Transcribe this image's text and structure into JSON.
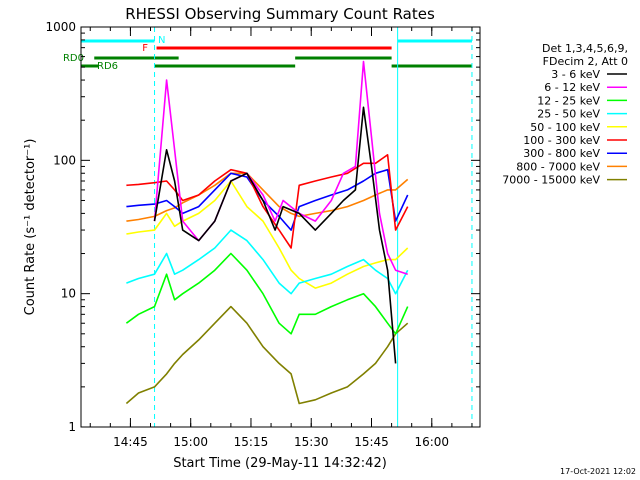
{
  "chart_data": {
    "type": "line",
    "title": "RHESSI Observing Summary Count Rates",
    "xlabel": "Start Time (29-May-11 14:32:42)",
    "ylabel": "Count Rate (s⁻¹ detector⁻¹)",
    "y_scale": "log",
    "ylim": [
      1,
      1000
    ],
    "xlim": [
      "14:32:42",
      "16:12:00"
    ],
    "grid": false,
    "x_ticks": [
      "14:45",
      "15:00",
      "15:15",
      "15:30",
      "15:45",
      "16:00"
    ],
    "y_ticks": [
      "1",
      "10",
      "100",
      "1000"
    ],
    "timestamp": "17-Oct-2021 12:02",
    "legend": {
      "position": "right",
      "header": [
        "Det 1,3,4,5,6,9,",
        "FDecim 2, Att 0"
      ]
    },
    "flags": [
      {
        "label": "N",
        "color": "#00ffff",
        "segments": [
          [
            "14:32:42",
            "14:51:00"
          ],
          [
            "15:51:30",
            "16:10:00"
          ]
        ]
      },
      {
        "label": "F",
        "color": "#ff0000",
        "segments": [
          [
            "14:51:30",
            "15:50:00"
          ]
        ]
      },
      {
        "label": "RD0",
        "color": "#008000",
        "segments": [
          [
            "14:36:00",
            "14:57:00"
          ],
          [
            "15:26:00",
            "15:50:00"
          ]
        ]
      },
      {
        "label": "RD6",
        "color": "#008000",
        "segments": [
          [
            "14:32:42",
            "14:37:00"
          ],
          [
            "14:51:00",
            "15:26:00"
          ],
          [
            "15:50:00",
            "16:10:00"
          ]
        ]
      }
    ],
    "vlines": [
      {
        "time": "14:51:00",
        "color": "#00ffff",
        "style": "dashed"
      },
      {
        "time": "15:51:30",
        "color": "#00ffff",
        "style": "solid"
      },
      {
        "time": "16:10:00",
        "color": "#00ffff",
        "style": "dashed"
      }
    ],
    "series": [
      {
        "name": "3 - 6 keV",
        "color": "#000000",
        "points": [
          [
            "14:51:00",
            35
          ],
          [
            "14:54:00",
            120
          ],
          [
            "14:56:00",
            70
          ],
          [
            "14:58:00",
            30
          ],
          [
            "15:02:00",
            25
          ],
          [
            "15:06:00",
            35
          ],
          [
            "15:10:00",
            70
          ],
          [
            "15:14:00",
            80
          ],
          [
            "15:18:00",
            50
          ],
          [
            "15:21:00",
            30
          ],
          [
            "15:23:00",
            45
          ],
          [
            "15:27:00",
            40
          ],
          [
            "15:31:00",
            30
          ],
          [
            "15:35:00",
            40
          ],
          [
            "15:38:00",
            50
          ],
          [
            "15:41:00",
            60
          ],
          [
            "15:43:00",
            250
          ],
          [
            "15:45:00",
            90
          ],
          [
            "15:47:00",
            30
          ],
          [
            "15:49:00",
            15
          ],
          [
            "15:51:00",
            3
          ]
        ]
      },
      {
        "name": "6 - 12 keV",
        "color": "#ff00ff",
        "points": [
          [
            "14:51:00",
            35
          ],
          [
            "14:54:00",
            400
          ],
          [
            "14:56:00",
            120
          ],
          [
            "14:58:00",
            35
          ],
          [
            "15:02:00",
            25
          ],
          [
            "15:06:00",
            35
          ],
          [
            "15:10:00",
            70
          ],
          [
            "15:14:00",
            80
          ],
          [
            "15:18:00",
            55
          ],
          [
            "15:21:00",
            35
          ],
          [
            "15:23:00",
            50
          ],
          [
            "15:27:00",
            40
          ],
          [
            "15:31:00",
            35
          ],
          [
            "15:35:00",
            50
          ],
          [
            "15:38:00",
            80
          ],
          [
            "15:41:00",
            90
          ],
          [
            "15:43:00",
            550
          ],
          [
            "15:45:00",
            150
          ],
          [
            "15:47:00",
            40
          ],
          [
            "15:49:00",
            20
          ],
          [
            "15:51:00",
            15
          ],
          [
            "15:54:00",
            14
          ]
        ]
      },
      {
        "name": "12 - 25 keV",
        "color": "#00ff00",
        "points": [
          [
            "14:44:00",
            6
          ],
          [
            "14:47:00",
            7
          ],
          [
            "14:51:00",
            8
          ],
          [
            "14:54:00",
            14
          ],
          [
            "14:56:00",
            9
          ],
          [
            "14:58:00",
            10
          ],
          [
            "15:02:00",
            12
          ],
          [
            "15:06:00",
            15
          ],
          [
            "15:10:00",
            20
          ],
          [
            "15:14:00",
            15
          ],
          [
            "15:18:00",
            10
          ],
          [
            "15:22:00",
            6
          ],
          [
            "15:25:00",
            5
          ],
          [
            "15:27:00",
            7
          ],
          [
            "15:31:00",
            7
          ],
          [
            "15:35:00",
            8
          ],
          [
            "15:39:00",
            9
          ],
          [
            "15:43:00",
            10
          ],
          [
            "15:46:00",
            8
          ],
          [
            "15:49:00",
            6
          ],
          [
            "15:51:00",
            5
          ],
          [
            "15:54:00",
            8
          ]
        ]
      },
      {
        "name": "25 - 50 keV",
        "color": "#00ffff",
        "points": [
          [
            "14:44:00",
            12
          ],
          [
            "14:47:00",
            13
          ],
          [
            "14:51:00",
            14
          ],
          [
            "14:54:00",
            20
          ],
          [
            "14:56:00",
            14
          ],
          [
            "14:58:00",
            15
          ],
          [
            "15:02:00",
            18
          ],
          [
            "15:06:00",
            22
          ],
          [
            "15:10:00",
            30
          ],
          [
            "15:14:00",
            25
          ],
          [
            "15:18:00",
            18
          ],
          [
            "15:22:00",
            12
          ],
          [
            "15:25:00",
            10
          ],
          [
            "15:27:00",
            12
          ],
          [
            "15:31:00",
            13
          ],
          [
            "15:35:00",
            14
          ],
          [
            "15:39:00",
            16
          ],
          [
            "15:43:00",
            18
          ],
          [
            "15:46:00",
            15
          ],
          [
            "15:49:00",
            13
          ],
          [
            "15:51:00",
            10
          ],
          [
            "15:54:00",
            15
          ]
        ]
      },
      {
        "name": "50 - 100 keV",
        "color": "#ffff00",
        "points": [
          [
            "14:44:00",
            28
          ],
          [
            "14:47:00",
            29
          ],
          [
            "14:51:00",
            30
          ],
          [
            "14:54:00",
            40
          ],
          [
            "14:56:00",
            32
          ],
          [
            "14:58:00",
            35
          ],
          [
            "15:02:00",
            40
          ],
          [
            "15:06:00",
            50
          ],
          [
            "15:10:00",
            70
          ],
          [
            "15:14:00",
            45
          ],
          [
            "15:18:00",
            35
          ],
          [
            "15:22:00",
            22
          ],
          [
            "15:25:00",
            15
          ],
          [
            "15:27:00",
            13
          ],
          [
            "15:31:00",
            11
          ],
          [
            "15:35:00",
            12
          ],
          [
            "15:39:00",
            14
          ],
          [
            "15:43:00",
            16
          ],
          [
            "15:46:00",
            17
          ],
          [
            "15:49:00",
            18
          ],
          [
            "15:51:00",
            18
          ],
          [
            "15:54:00",
            22
          ]
        ]
      },
      {
        "name": "100 - 300 keV",
        "color": "#ff0000",
        "points": [
          [
            "14:44:00",
            65
          ],
          [
            "14:47:00",
            66
          ],
          [
            "14:51:00",
            68
          ],
          [
            "14:54:00",
            70
          ],
          [
            "14:56:00",
            60
          ],
          [
            "14:58:00",
            50
          ],
          [
            "15:02:00",
            55
          ],
          [
            "15:06:00",
            70
          ],
          [
            "15:10:00",
            85
          ],
          [
            "15:14:00",
            80
          ],
          [
            "15:18:00",
            45
          ],
          [
            "15:22:00",
            30
          ],
          [
            "15:25:00",
            22
          ],
          [
            "15:27:00",
            65
          ],
          [
            "15:31:00",
            70
          ],
          [
            "15:35:00",
            75
          ],
          [
            "15:39:00",
            80
          ],
          [
            "15:43:00",
            95
          ],
          [
            "15:46:00",
            95
          ],
          [
            "15:49:00",
            110
          ],
          [
            "15:51:00",
            30
          ],
          [
            "15:54:00",
            45
          ]
        ]
      },
      {
        "name": "300 - 800 keV",
        "color": "#0000ff",
        "points": [
          [
            "14:44:00",
            45
          ],
          [
            "14:47:00",
            46
          ],
          [
            "14:51:00",
            47
          ],
          [
            "14:54:00",
            50
          ],
          [
            "14:56:00",
            45
          ],
          [
            "14:58:00",
            40
          ],
          [
            "15:02:00",
            45
          ],
          [
            "15:06:00",
            60
          ],
          [
            "15:10:00",
            80
          ],
          [
            "15:14:00",
            75
          ],
          [
            "15:18:00",
            50
          ],
          [
            "15:22:00",
            38
          ],
          [
            "15:25:00",
            30
          ],
          [
            "15:27:00",
            45
          ],
          [
            "15:31:00",
            50
          ],
          [
            "15:35:00",
            55
          ],
          [
            "15:39:00",
            60
          ],
          [
            "15:43:00",
            70
          ],
          [
            "15:46:00",
            80
          ],
          [
            "15:49:00",
            85
          ],
          [
            "15:51:00",
            35
          ],
          [
            "15:54:00",
            55
          ]
        ]
      },
      {
        "name": "800 - 7000 keV",
        "color": "#ff8000",
        "points": [
          [
            "14:44:00",
            35
          ],
          [
            "14:47:00",
            36
          ],
          [
            "14:51:00",
            38
          ],
          [
            "14:54:00",
            42
          ],
          [
            "14:56:00",
            44
          ],
          [
            "14:58:00",
            48
          ],
          [
            "15:02:00",
            55
          ],
          [
            "15:06:00",
            65
          ],
          [
            "15:10:00",
            80
          ],
          [
            "15:14:00",
            80
          ],
          [
            "15:18:00",
            60
          ],
          [
            "15:22:00",
            45
          ],
          [
            "15:25:00",
            40
          ],
          [
            "15:27:00",
            38
          ],
          [
            "15:31:00",
            40
          ],
          [
            "15:35:00",
            42
          ],
          [
            "15:39:00",
            45
          ],
          [
            "15:43:00",
            50
          ],
          [
            "15:46:00",
            55
          ],
          [
            "15:49:00",
            60
          ],
          [
            "15:51:00",
            60
          ],
          [
            "15:54:00",
            72
          ]
        ]
      },
      {
        "name": "7000 - 15000 keV",
        "color": "#808000",
        "points": [
          [
            "14:44:00",
            1.5
          ],
          [
            "14:47:00",
            1.8
          ],
          [
            "14:51:00",
            2
          ],
          [
            "14:54:00",
            2.5
          ],
          [
            "14:56:00",
            3
          ],
          [
            "14:58:00",
            3.5
          ],
          [
            "15:02:00",
            4.5
          ],
          [
            "15:06:00",
            6
          ],
          [
            "15:10:00",
            8
          ],
          [
            "15:14:00",
            6
          ],
          [
            "15:18:00",
            4
          ],
          [
            "15:22:00",
            3
          ],
          [
            "15:25:00",
            2.5
          ],
          [
            "15:27:00",
            1.5
          ],
          [
            "15:31:00",
            1.6
          ],
          [
            "15:35:00",
            1.8
          ],
          [
            "15:39:00",
            2
          ],
          [
            "15:43:00",
            2.5
          ],
          [
            "15:46:00",
            3
          ],
          [
            "15:49:00",
            4
          ],
          [
            "15:51:00",
            5
          ],
          [
            "15:54:00",
            6
          ]
        ]
      }
    ]
  }
}
